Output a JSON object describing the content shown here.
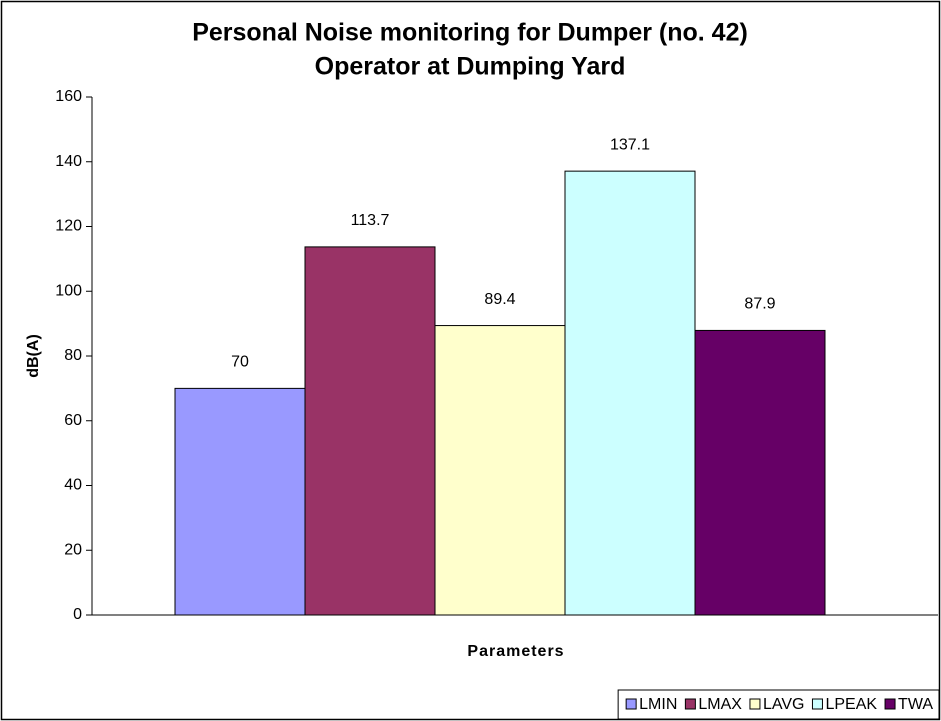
{
  "chart_data": {
    "type": "bar",
    "title": [
      "Personal Noise monitoring for Dumper (no. 42)",
      "Operator at Dumping Yard"
    ],
    "y_label": "dB(A)",
    "x_label": "Parameters",
    "categories": [
      null
    ],
    "series": [
      {
        "name": "LMIN",
        "color": "#9999ff",
        "values": [
          70
        ]
      },
      {
        "name": "LMAX",
        "color": "#993366",
        "values": [
          113.7
        ]
      },
      {
        "name": "LAVG",
        "color": "#ffffcc",
        "values": [
          89.4
        ]
      },
      {
        "name": "LPEAK",
        "color": "#ccffff",
        "values": [
          137.1
        ]
      },
      {
        "name": "TWA",
        "color": "#660066",
        "values": [
          87.9
        ]
      }
    ],
    "ylim": [
      0,
      160
    ],
    "yticks": [
      0,
      20,
      40,
      60,
      80,
      100,
      120,
      140,
      160
    ],
    "grid": false,
    "legend": "bottom-right",
    "data_labels": true
  }
}
